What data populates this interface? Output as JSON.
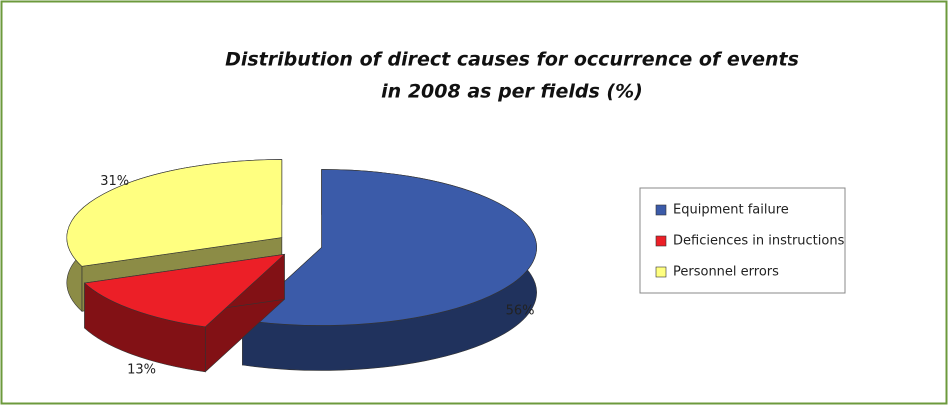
{
  "chart_data": {
    "type": "pie",
    "title": [
      "Distribution of direct causes for occurrence of events",
      "in 2008 as per fields (%)"
    ],
    "categories": [
      "Equipment failure",
      "Deficiences in instructions",
      "Personnel errors"
    ],
    "values": [
      56,
      13,
      31
    ],
    "value_labels": [
      "56%",
      "13%",
      "31%"
    ],
    "colors": [
      "#3b5ba9",
      "#ec1f27",
      "#ffff80"
    ],
    "legend": "right"
  }
}
